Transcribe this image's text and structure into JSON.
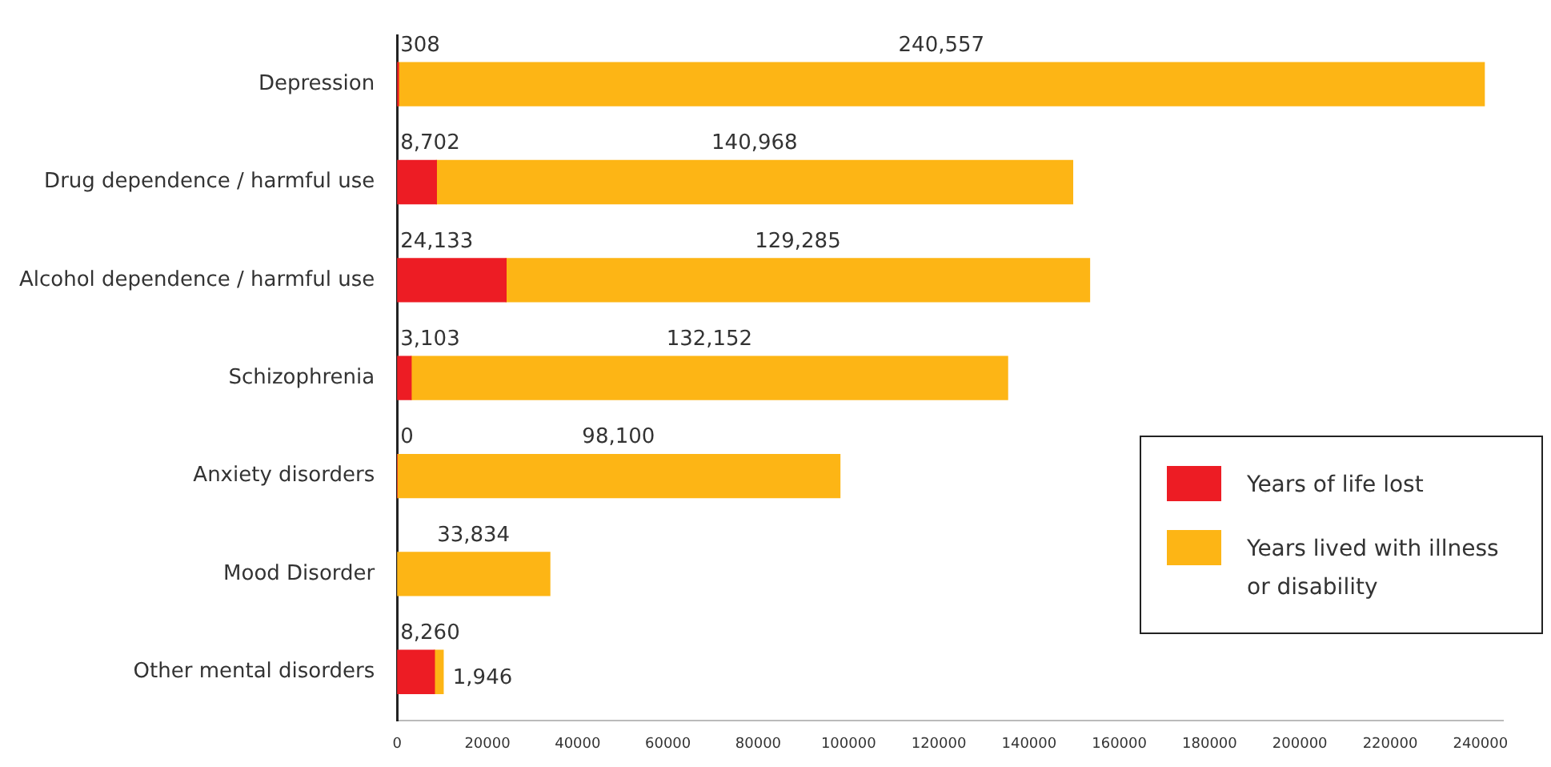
{
  "chart_data": {
    "type": "bar",
    "orientation": "horizontal",
    "stacked": true,
    "categories": [
      "Depression",
      "Drug dependence / harmful use",
      "Alcohol dependence / harmful use",
      "Schizophrenia",
      "Anxiety disorders",
      "Mood Disorder",
      "Other mental disorders"
    ],
    "series": [
      {
        "name": "Years of life lost",
        "color": "#ed1c24",
        "values": [
          308,
          8702,
          24133,
          3103,
          0,
          null,
          8260
        ],
        "value_labels": [
          "308",
          "8,702",
          "24,133",
          "3,103",
          "0",
          null,
          "8,260"
        ]
      },
      {
        "name": "Years lived with illness or disability",
        "color": "#fdb515",
        "values": [
          240557,
          140968,
          129285,
          132152,
          98100,
          33834,
          1946
        ],
        "value_labels": [
          "240,557",
          "140,968",
          "129,285",
          "132,152",
          "98,100",
          "33,834",
          "1,946"
        ]
      }
    ],
    "xlim": [
      0,
      245000
    ],
    "xticks": [
      0,
      20000,
      40000,
      60000,
      80000,
      100000,
      120000,
      140000,
      160000,
      180000,
      200000,
      220000,
      240000
    ],
    "grid": false,
    "legend": "right"
  }
}
